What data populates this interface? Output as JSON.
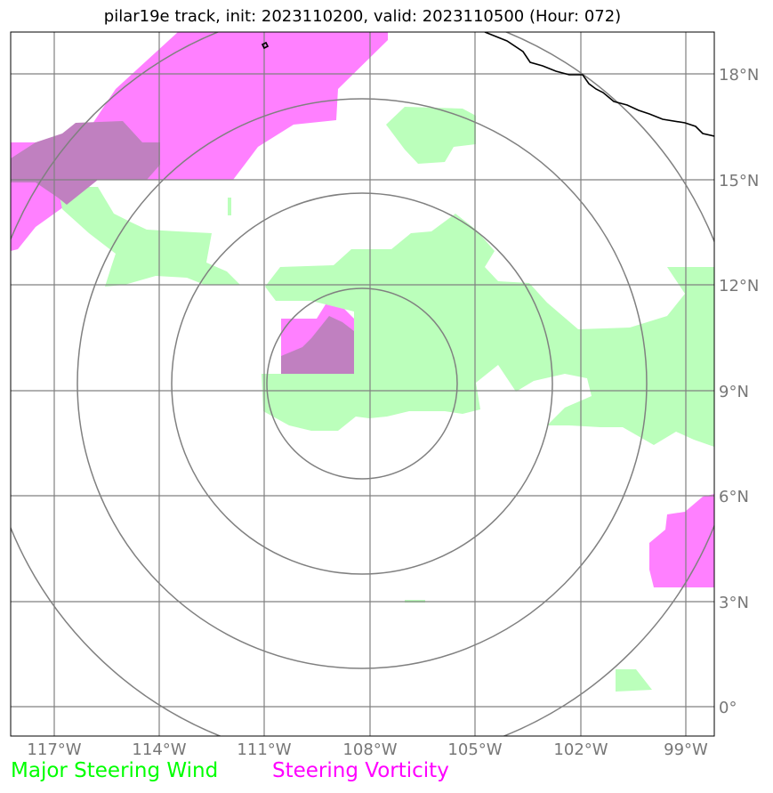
{
  "title": "pilar19e track, init: 2023110200, valid: 2023110500 (Hour: 072)",
  "map": {
    "lon_ticks": [
      "117°W",
      "114°W",
      "111°W",
      "108°W",
      "105°W",
      "102°W",
      "99°W"
    ],
    "lat_ticks": [
      "18°N",
      "15°N",
      "12°N",
      "9°N",
      "6°N",
      "3°N",
      "0°"
    ],
    "extent": {
      "lon_min": "118.2°W",
      "lon_max": "98.2°W",
      "lat_min": "0.8°S",
      "lat_max": "19.2°N"
    },
    "storm_center": {
      "lon": "108°W",
      "lat": "9.3°N"
    },
    "range_rings_deg": [
      2.7,
      5.4,
      8.1,
      10.8
    ],
    "colors": {
      "steering_wind": "#bbffbb",
      "steering_vorticity": "#ff80ff",
      "overlap": "#c080c0",
      "grid": "#808080",
      "coastline": "#000000"
    }
  },
  "legend": {
    "wind_label": "Major Steering Wind",
    "vorticity_label": "Steering Vorticity"
  }
}
